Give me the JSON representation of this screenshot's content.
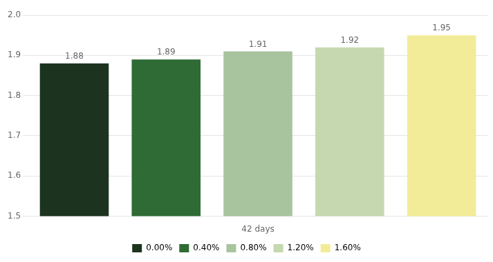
{
  "chart_data": {
    "type": "bar",
    "categories": [
      "0.00%",
      "0.40%",
      "0.80%",
      "1.20%",
      "1.60%"
    ],
    "values": [
      1.88,
      1.89,
      1.91,
      1.92,
      1.95
    ],
    "colors": [
      "#1c3320",
      "#2e6b35",
      "#a8c49e",
      "#c5d8b0",
      "#f2ec98"
    ],
    "xlabel": "42 days",
    "ylim": [
      1.5,
      2.0
    ],
    "yticks": [
      1.5,
      1.6,
      1.7,
      1.8,
      1.9,
      {
        "value": 2,
        "label": "2.0"
      }
    ],
    "grid": true,
    "legend": "bottom",
    "data_labels": true,
    "tick_labels": "y"
  }
}
